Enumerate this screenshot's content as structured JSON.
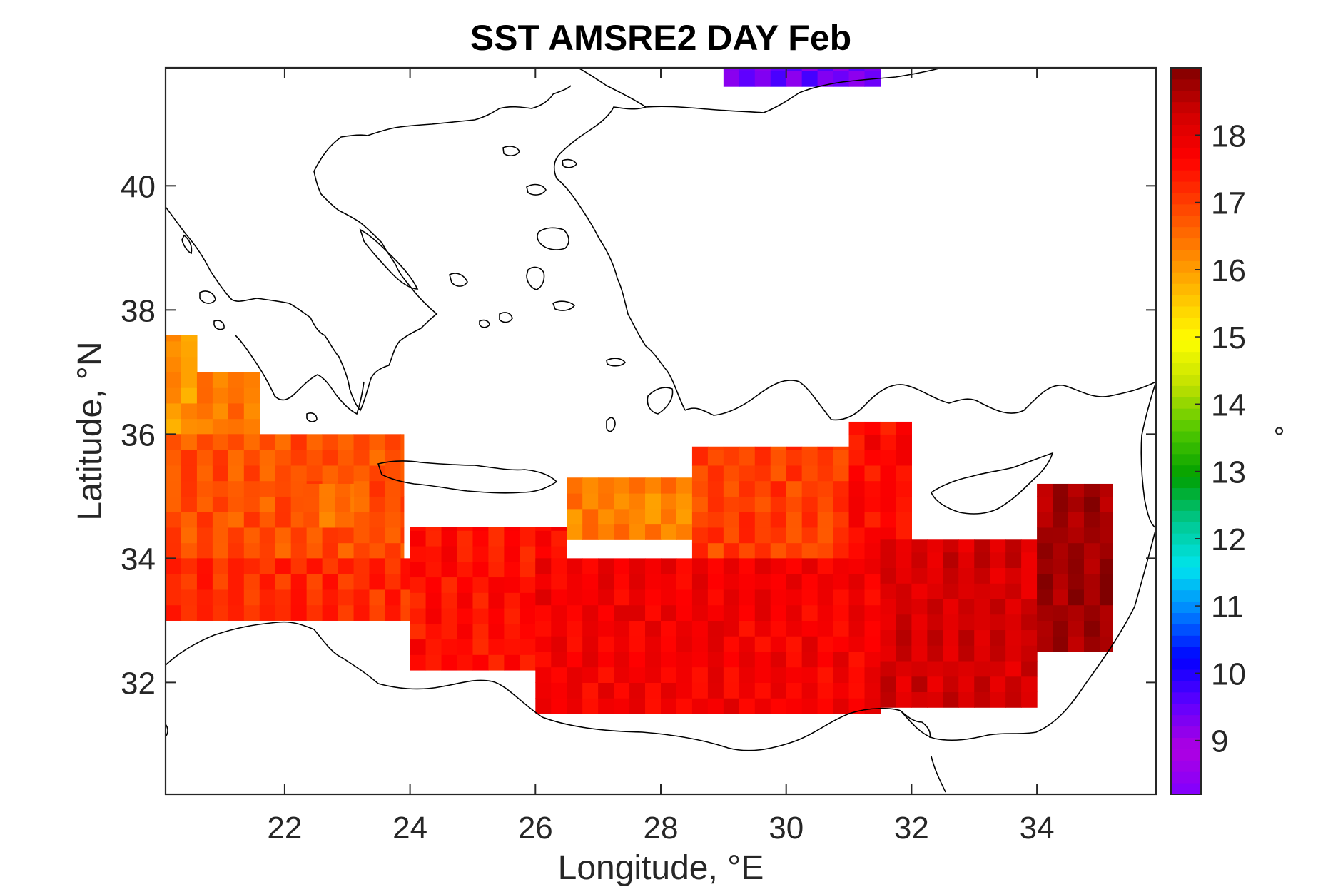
{
  "chart_data": {
    "type": "heatmap",
    "title": "SST AMSRE2 DAY Feb",
    "xlabel": "Longitude, °E",
    "ylabel": "Latitude, °N",
    "colorbar_label": "°",
    "xlim": [
      20.1,
      35.9
    ],
    "ylim": [
      30.2,
      41.9
    ],
    "xticks": [
      22,
      24,
      26,
      28,
      30,
      32,
      34
    ],
    "yticks": [
      32,
      34,
      36,
      38,
      40
    ],
    "clim": [
      8.2,
      19.0
    ],
    "cticks": [
      9,
      10,
      11,
      12,
      13,
      14,
      15,
      16,
      17,
      18
    ],
    "colormap": [
      "#8000ff",
      "#b000e0",
      "#6000ff",
      "#0000ff",
      "#0080ff",
      "#00e5ee",
      "#00c890",
      "#00a000",
      "#50c800",
      "#c0e000",
      "#ffff00",
      "#ffc000",
      "#ff8000",
      "#ff4000",
      "#ff0000",
      "#d00000",
      "#800000"
    ],
    "grid_cell_deg": 0.25,
    "grid": false,
    "regions_sst": [
      {
        "lon": [
          20.1,
          20.6
        ],
        "lat": [
          36.0,
          37.6
        ],
        "sst": 16.1
      },
      {
        "lon": [
          20.6,
          21.6
        ],
        "lat": [
          36.0,
          37.0
        ],
        "sst": 16.4
      },
      {
        "lon": [
          20.1,
          23.9
        ],
        "lat": [
          34.0,
          36.0
        ],
        "sst": 16.8
      },
      {
        "lon": [
          22.3,
          23.1
        ],
        "lat": [
          34.5,
          35.2
        ],
        "sst": 16.5
      },
      {
        "lon": [
          20.1,
          24.0
        ],
        "lat": [
          33.0,
          34.0
        ],
        "sst": 17.2
      },
      {
        "lon": [
          24.0,
          26.5
        ],
        "lat": [
          32.2,
          34.5
        ],
        "sst": 17.5
      },
      {
        "lon": [
          26.5,
          29.5
        ],
        "lat": [
          34.3,
          35.3
        ],
        "sst": 16.3
      },
      {
        "lon": [
          28.5,
          31.0
        ],
        "lat": [
          34.0,
          35.8
        ],
        "sst": 17.0
      },
      {
        "lon": [
          26.0,
          31.5
        ],
        "lat": [
          31.5,
          34.0
        ],
        "sst": 17.8
      },
      {
        "lon": [
          31.0,
          32.0
        ],
        "lat": [
          34.0,
          36.2
        ],
        "sst": 17.6
      },
      {
        "lon": [
          31.5,
          34.0
        ],
        "lat": [
          31.6,
          34.3
        ],
        "sst": 18.2
      },
      {
        "lon": [
          34.0,
          35.2
        ],
        "lat": [
          32.5,
          35.2
        ],
        "sst": 18.7
      },
      {
        "lon": [
          29.0,
          31.5
        ],
        "lat": [
          41.6,
          41.9
        ],
        "sst": 9.4
      }
    ]
  }
}
